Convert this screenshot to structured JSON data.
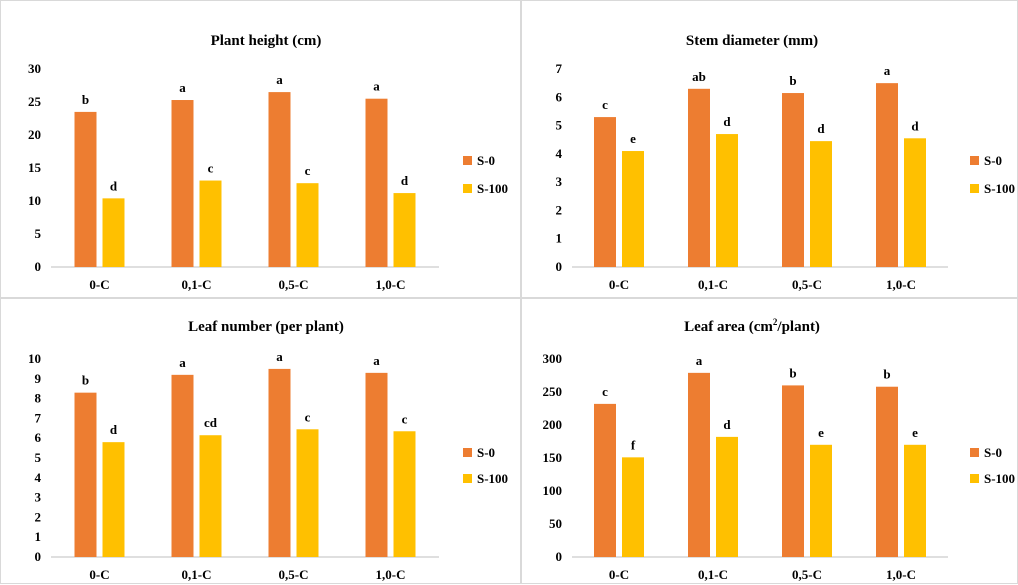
{
  "colors": {
    "s0": "#ED7D31",
    "s100": "#FFC000",
    "axis": "#bfbfbf"
  },
  "chart_data": [
    {
      "type": "bar",
      "title": "Plant height (cm)",
      "categories": [
        "0-C",
        "0,1-C",
        "0,5-C",
        "1,0-C"
      ],
      "ylim": [
        0,
        30
      ],
      "yticks": [
        0,
        5,
        10,
        15,
        20,
        25,
        30
      ],
      "legend_position": "right",
      "series": [
        {
          "name": "S-0",
          "color": "#ED7D31",
          "values": [
            23.5,
            25.3,
            26.5,
            25.5
          ],
          "labels": [
            "b",
            "a",
            "a",
            "a"
          ]
        },
        {
          "name": "S-100",
          "color": "#FFC000",
          "values": [
            10.4,
            13.1,
            12.7,
            11.2
          ],
          "labels": [
            "d",
            "c",
            "c",
            "d"
          ]
        }
      ]
    },
    {
      "type": "bar",
      "title": "Stem diameter (mm)",
      "categories": [
        "0-C",
        "0,1-C",
        "0,5-C",
        "1,0-C"
      ],
      "ylim": [
        0,
        7
      ],
      "yticks": [
        0,
        1,
        2,
        3,
        4,
        5,
        6,
        7
      ],
      "legend_position": "right",
      "series": [
        {
          "name": "S-0",
          "color": "#ED7D31",
          "values": [
            5.3,
            6.3,
            6.15,
            6.5
          ],
          "labels": [
            "c",
            "ab",
            "b",
            "a"
          ]
        },
        {
          "name": "S-100",
          "color": "#FFC000",
          "values": [
            4.1,
            4.7,
            4.45,
            4.55
          ],
          "labels": [
            "e",
            "d",
            "d",
            "d"
          ]
        }
      ]
    },
    {
      "type": "bar",
      "title": "Leaf number (per plant)",
      "categories": [
        "0-C",
        "0,1-C",
        "0,5-C",
        "1,0-C"
      ],
      "ylim": [
        0,
        10
      ],
      "yticks": [
        0,
        1,
        2,
        3,
        4,
        5,
        6,
        7,
        8,
        9,
        10
      ],
      "legend_position": "right",
      "series": [
        {
          "name": "S-0",
          "color": "#ED7D31",
          "values": [
            8.3,
            9.2,
            9.5,
            9.3
          ],
          "labels": [
            "b",
            "a",
            "a",
            "a"
          ]
        },
        {
          "name": "S-100",
          "color": "#FFC000",
          "values": [
            5.8,
            6.15,
            6.45,
            6.35
          ],
          "labels": [
            "d",
            "cd",
            "c",
            "c"
          ]
        }
      ]
    },
    {
      "type": "bar",
      "title": "Leaf area (cm",
      "title_sup": "2",
      "title_suffix": "/plant)",
      "categories": [
        "0-C",
        "0,1-C",
        "0,5-C",
        "1,0-C"
      ],
      "ylim": [
        0,
        300
      ],
      "yticks": [
        0,
        50,
        100,
        150,
        200,
        250,
        300
      ],
      "legend_position": "right",
      "series": [
        {
          "name": "S-0",
          "color": "#ED7D31",
          "values": [
            232,
            279,
            260,
            258
          ],
          "labels": [
            "c",
            "a",
            "b",
            "b"
          ]
        },
        {
          "name": "S-100",
          "color": "#FFC000",
          "values": [
            151,
            182,
            170,
            170
          ],
          "labels": [
            "f",
            "d",
            "e",
            "e"
          ]
        }
      ]
    }
  ]
}
